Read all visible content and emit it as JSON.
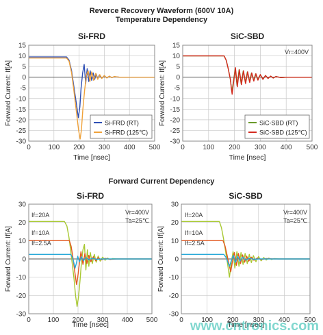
{
  "header": {
    "title_line1": "Reverce Recovery Waveform (600V 10A)",
    "title_line2": "Temperature Dependency",
    "section2_title": "Forward Current Dependency"
  },
  "watermark": "www.cntronics.com",
  "colors": {
    "grid": "#c8c8c8",
    "frame": "#8a8a8a",
    "zero_line": "#555555",
    "si_rt": "#2e4fb5",
    "si_125": "#f0a23a",
    "sic_rt": "#6a9a2a",
    "sic_125": "#d42a1f",
    "if20": "#a8c832",
    "if10": "#e2571e",
    "if2_5": "#27a9d9",
    "watermark": "#19b6a8"
  },
  "chart_data": [
    {
      "type": "line",
      "title": "Si-FRD",
      "xlabel": "Time [nsec]",
      "ylabel": "Forward Current: If[A]",
      "xlim": [
        0,
        500
      ],
      "ylim": [
        -30,
        15
      ],
      "xticks": [
        0,
        100,
        200,
        300,
        400,
        500
      ],
      "yticks": [
        15,
        10,
        5,
        0,
        -5,
        -10,
        -15,
        -20,
        -25,
        -30
      ],
      "grid": true,
      "annotations": [],
      "legend": {
        "position": "bottom-right"
      },
      "series": [
        {
          "name": "Si-FRD (RT)",
          "color_key": "si_rt",
          "x": [
            0,
            150,
            160,
            170,
            180,
            190,
            197,
            203,
            208,
            214,
            220,
            226,
            232,
            238,
            244,
            250,
            256,
            262,
            268,
            274,
            280,
            290,
            300,
            310,
            320,
            330,
            340,
            360,
            400,
            450,
            500
          ],
          "y": [
            9.5,
            9.5,
            8,
            3,
            -5,
            -13,
            -19,
            -14,
            -5,
            2,
            6,
            -3,
            4,
            -2,
            3,
            -1.5,
            2,
            -1,
            1.5,
            -0.8,
            1,
            -0.5,
            0.7,
            -0.3,
            0.4,
            -0.2,
            0.2,
            0,
            0,
            0,
            0
          ]
        },
        {
          "name": "Si-FRD (125℃)",
          "color_key": "si_125",
          "x": [
            0,
            150,
            160,
            170,
            180,
            190,
            198,
            204,
            209,
            215,
            222,
            229,
            236,
            243,
            250,
            258,
            266,
            274,
            282,
            290,
            300,
            310,
            320,
            330,
            340,
            360,
            400,
            450,
            500
          ],
          "y": [
            9,
            9,
            7.5,
            2,
            -7,
            -17,
            -25,
            -29,
            -25,
            -15,
            -6,
            1,
            3,
            -2,
            2.5,
            -1.5,
            1.8,
            -1,
            1.2,
            -0.6,
            0.8,
            -0.4,
            0.5,
            -0.2,
            0.3,
            0,
            0,
            0,
            0
          ]
        }
      ]
    },
    {
      "type": "line",
      "title": "SiC-SBD",
      "xlabel": "Time [nsec]",
      "ylabel": "Forward Current: If[A]",
      "xlim": [
        0,
        500
      ],
      "ylim": [
        -30,
        15
      ],
      "xticks": [
        0,
        100,
        200,
        300,
        400,
        500
      ],
      "yticks": [
        15,
        10,
        5,
        0,
        -5,
        -10,
        -15,
        -20,
        -25,
        -30
      ],
      "grid": true,
      "annotations": [
        "Vr=400V"
      ],
      "legend": {
        "position": "bottom-right"
      },
      "series": [
        {
          "name": "SiC-SBD (RT)",
          "color_key": "sic_rt",
          "x": [
            0,
            160,
            168,
            176,
            184,
            190,
            196,
            203,
            210,
            218,
            226,
            234,
            242,
            250,
            258,
            266,
            274,
            282,
            290,
            300,
            310,
            320,
            330,
            340,
            350,
            360,
            380,
            400,
            450,
            500
          ],
          "y": [
            10,
            10,
            8,
            4,
            -1,
            -7,
            -2,
            4,
            -4,
            3.5,
            -3,
            3,
            -2.5,
            2.5,
            -2,
            2,
            -1.6,
            1.6,
            -1.3,
            1.2,
            -1,
            0.8,
            -0.6,
            0.5,
            -0.4,
            0.3,
            -0.2,
            0,
            0,
            0
          ]
        },
        {
          "name": "SiC-SBD (125℃)",
          "color_key": "sic_125",
          "x": [
            0,
            160,
            168,
            176,
            184,
            191,
            197,
            204,
            211,
            219,
            227,
            235,
            243,
            251,
            259,
            267,
            275,
            283,
            291,
            300,
            310,
            320,
            330,
            340,
            350,
            360,
            380,
            400,
            450,
            500
          ],
          "y": [
            10,
            10,
            8,
            4,
            -1,
            -8,
            -2,
            4.5,
            -4.5,
            3.5,
            -3.5,
            3,
            -3,
            2.5,
            -2.5,
            2,
            -1.8,
            1.6,
            -1.4,
            1.2,
            -1,
            0.8,
            -0.6,
            0.5,
            -0.4,
            0.3,
            -0.2,
            0,
            0,
            0
          ]
        }
      ]
    },
    {
      "type": "line",
      "title": "Si-FRD",
      "xlabel": "Time [nsec]",
      "ylabel": "Forward Current: If[A]",
      "xlim": [
        0,
        500
      ],
      "ylim": [
        -30,
        30
      ],
      "xticks": [
        0,
        100,
        200,
        300,
        400,
        500
      ],
      "yticks": [
        30,
        20,
        10,
        0,
        -10,
        -20,
        -30
      ],
      "grid": true,
      "annotations": [
        "Vr=400V",
        "Ta=25℃",
        "If=20A",
        "If=10A",
        "If=2.5A"
      ],
      "series": [
        {
          "name": "If=20A",
          "color_key": "if20",
          "x": [
            0,
            145,
            155,
            163,
            170,
            177,
            184,
            190,
            196,
            202,
            208,
            214,
            220,
            226,
            232,
            238,
            244,
            250,
            258,
            266,
            274,
            282,
            290,
            300,
            310,
            320,
            330,
            340,
            360,
            400,
            450,
            500
          ],
          "y": [
            20.5,
            20.5,
            18,
            12,
            5,
            -3,
            -11,
            -20,
            -26,
            -21,
            -12,
            -2,
            5,
            8,
            -6,
            5,
            -4,
            3.5,
            -2.5,
            2.5,
            -1.8,
            1.6,
            -1.2,
            1,
            -0.7,
            0.5,
            -0.3,
            0.2,
            0,
            0,
            0,
            0
          ]
        },
        {
          "name": "If=10A",
          "color_key": "if10",
          "x": [
            0,
            165,
            172,
            178,
            184,
            189,
            194,
            199,
            205,
            212,
            220,
            228,
            236,
            244,
            252,
            262,
            272,
            282,
            295,
            310,
            330,
            360,
            400,
            450,
            500
          ],
          "y": [
            10,
            10,
            7,
            2,
            -4,
            -9,
            -14,
            -10,
            -3,
            4,
            -3,
            3,
            -2.5,
            2,
            -1.5,
            1.2,
            -1,
            0.7,
            -0.5,
            0.3,
            -0.2,
            0,
            0,
            0,
            0
          ]
        },
        {
          "name": "If=2.5A",
          "color_key": "if2_5",
          "x": [
            0,
            170,
            177,
            183,
            188,
            193,
            199,
            206,
            214,
            222,
            232,
            244,
            258,
            275,
            300,
            350,
            400,
            450,
            500
          ],
          "y": [
            2.5,
            2.5,
            1,
            -2,
            -5,
            -2.5,
            1.5,
            -1.5,
            1.2,
            -1,
            0.8,
            -0.5,
            0.3,
            -0.2,
            0,
            0,
            0,
            0,
            0
          ]
        }
      ]
    },
    {
      "type": "line",
      "title": "SiC-SBD",
      "xlabel": "Time [nsec]",
      "ylabel": "Forward Current: If[A]",
      "xlim": [
        0,
        500
      ],
      "ylim": [
        -30,
        30
      ],
      "xticks": [
        0,
        100,
        200,
        300,
        400,
        500
      ],
      "yticks": [
        30,
        20,
        10,
        0,
        -10,
        -20,
        -30
      ],
      "grid": true,
      "annotations": [
        "Vr=400V",
        "Ta=25℃",
        "If=20A",
        "If=10A",
        "If=2.5A"
      ],
      "series": [
        {
          "name": "If=20A",
          "color_key": "if20",
          "x": [
            0,
            148,
            156,
            164,
            172,
            180,
            187,
            194,
            201,
            208,
            216,
            224,
            232,
            240,
            248,
            256,
            264,
            272,
            280,
            290,
            300,
            310,
            320,
            330,
            340,
            350,
            360,
            380,
            400,
            450,
            500
          ],
          "y": [
            20.5,
            20.5,
            17,
            11,
            4,
            -3,
            -10,
            -2,
            4,
            -5,
            4,
            -4,
            3.5,
            -3,
            3,
            -2.5,
            2.5,
            -2,
            1.8,
            -1.5,
            1.3,
            -1,
            0.8,
            -0.6,
            0.5,
            -0.3,
            0.2,
            0,
            0,
            0,
            0
          ]
        },
        {
          "name": "If=10A",
          "color_key": "if10",
          "x": [
            0,
            162,
            170,
            178,
            185,
            192,
            199,
            206,
            214,
            222,
            230,
            238,
            246,
            254,
            262,
            272,
            282,
            295,
            310,
            330,
            360,
            400,
            450,
            500
          ],
          "y": [
            10,
            10,
            7,
            2,
            -3,
            -7,
            -1,
            3.5,
            -3.5,
            3,
            -2.5,
            2.2,
            -1.8,
            1.5,
            -1.2,
            1,
            -0.7,
            0.5,
            -0.3,
            0.2,
            0,
            0,
            0,
            0
          ]
        },
        {
          "name": "If=2.5A",
          "color_key": "if2_5",
          "x": [
            0,
            165,
            173,
            180,
            187,
            194,
            202,
            210,
            219,
            228,
            238,
            250,
            264,
            280,
            300,
            350,
            400,
            450,
            500
          ],
          "y": [
            2.5,
            2.5,
            1,
            -1.5,
            -4,
            -1,
            2,
            -2,
            1.5,
            -1.2,
            1,
            -0.6,
            0.4,
            -0.2,
            0,
            0,
            0,
            0,
            0
          ]
        }
      ]
    }
  ]
}
